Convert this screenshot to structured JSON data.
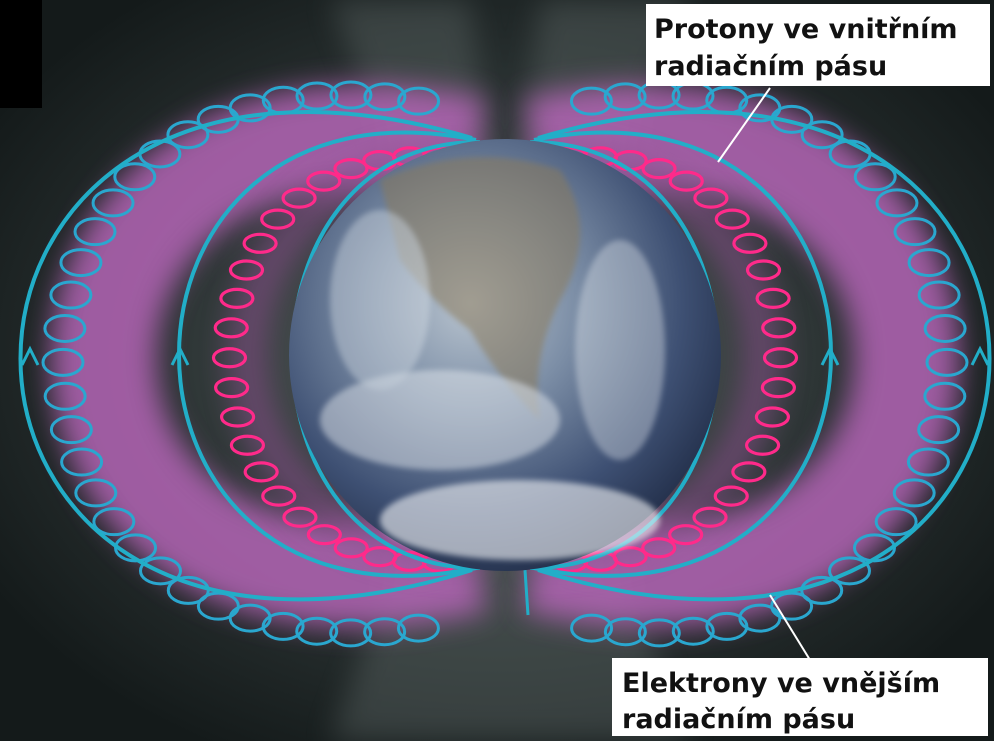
{
  "labels": [
    {
      "lines": [
        "Protony ve vnitřním",
        "radiačním pásu"
      ]
    },
    {
      "lines": [
        "Elektrony ve vnějším",
        "radiačním pásu"
      ]
    }
  ]
}
